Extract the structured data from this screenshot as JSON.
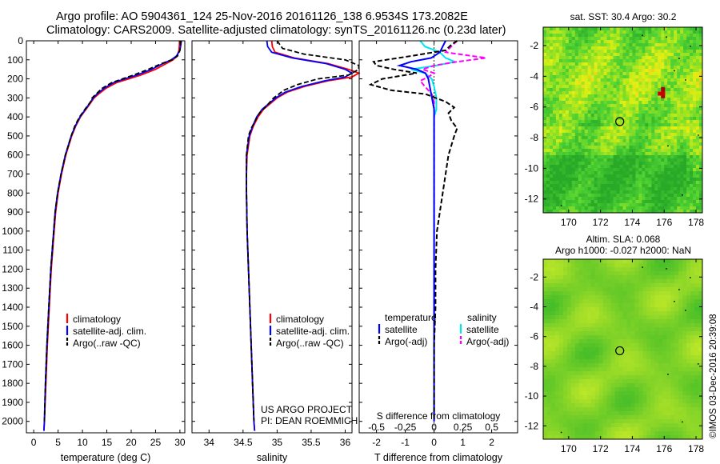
{
  "header": {
    "line1": "Argo profile: AO 5904361_124 25-Nov-2016 20161126_138 6.9534S 173.2082E",
    "line2": "Climatology: CARS2009. Satellite-adjusted climatology: synTS_20161126.nc (0.23d later)"
  },
  "colors": {
    "climatology": "#ff0000",
    "satellite": "#0000ff",
    "argo": "#000000",
    "sal_satellite": "#00e5ee",
    "sal_argo": "#ff00ff"
  },
  "depth_axis": {
    "ticks": [
      0,
      100,
      200,
      300,
      400,
      500,
      600,
      700,
      800,
      900,
      1000,
      1100,
      1200,
      1300,
      1400,
      1500,
      1600,
      1700,
      1800,
      1900,
      2000
    ],
    "ylim": [
      0,
      2060
    ]
  },
  "chart_data": [
    {
      "id": "temperature",
      "type": "line",
      "xlabel": "temperature (deg C)",
      "xlim": [
        -1.5,
        31
      ],
      "xticks": [
        0,
        5,
        10,
        15,
        20,
        25,
        30
      ],
      "legend": [
        "climatology",
        "satellite-adj. clim.",
        "Argo(..raw -QC)"
      ],
      "series": [
        {
          "name": "climatology",
          "depth": [
            0,
            20,
            50,
            80,
            100,
            120,
            150,
            180,
            200,
            220,
            250,
            280,
            300,
            350,
            400,
            450,
            500,
            600,
            700,
            800,
            900,
            1000,
            1200,
            1400,
            1600,
            1800,
            2000,
            2050
          ],
          "values": [
            29.9,
            29.9,
            29.8,
            29.4,
            28.6,
            27.2,
            25.0,
            22.0,
            19.5,
            17.0,
            14.8,
            13.3,
            12.4,
            11.0,
            9.6,
            8.6,
            7.8,
            6.6,
            5.7,
            5.0,
            4.5,
            4.2,
            3.6,
            3.2,
            2.8,
            2.5,
            2.2,
            2.1
          ]
        },
        {
          "name": "satellite-adj. clim.",
          "depth": [
            0,
            20,
            50,
            80,
            100,
            120,
            150,
            180,
            200,
            220,
            250,
            280,
            300,
            350,
            400,
            450,
            500,
            600,
            700,
            800,
            900,
            1000,
            1200,
            1400,
            1600,
            1800,
            2000,
            2050
          ],
          "values": [
            30.3,
            30.2,
            30.0,
            29.3,
            28.2,
            26.5,
            24.2,
            21.2,
            18.6,
            16.4,
            14.4,
            13.0,
            12.2,
            10.9,
            9.5,
            8.5,
            7.7,
            6.5,
            5.6,
            4.9,
            4.4,
            4.1,
            3.5,
            3.1,
            2.7,
            2.4,
            2.2,
            2.1
          ]
        },
        {
          "name": "Argo(..raw -QC)",
          "depth": [
            0,
            20,
            50,
            80,
            100,
            120,
            150,
            180,
            200,
            220,
            250,
            280,
            300,
            320,
            350,
            400,
            450,
            500,
            600,
            700,
            800,
            900,
            1000,
            1200,
            1400,
            1600,
            1800,
            2000
          ],
          "values": [
            30.2,
            30.1,
            30.0,
            29.5,
            28.4,
            26.2,
            23.5,
            20.5,
            18.2,
            16.0,
            14.0,
            12.8,
            12.0,
            11.7,
            10.8,
            9.4,
            8.4,
            7.7,
            6.5,
            5.6,
            4.9,
            4.4,
            4.1,
            3.5,
            3.1,
            2.7,
            2.4,
            2.2
          ]
        }
      ]
    },
    {
      "id": "salinity",
      "type": "line",
      "xlabel": "salinity",
      "xlim": [
        33.75,
        36.1
      ],
      "xticks": [
        34,
        34.5,
        35,
        35.5,
        36
      ],
      "tick_labels": [
        "34",
        "34.5",
        "35",
        "35.5",
        "36"
      ],
      "legend": [
        "climatology",
        "satellite-adj. clim.",
        "Argo(..raw -QC)"
      ],
      "annotation": [
        "US ARGO PROJECT",
        "PI: DEAN ROEMMICH"
      ],
      "series": [
        {
          "name": "climatology",
          "depth": [
            0,
            30,
            60,
            90,
            120,
            150,
            170,
            190,
            210,
            240,
            270,
            300,
            330,
            360,
            400,
            450,
            500,
            600,
            700,
            800,
            1000,
            1200,
            1400,
            1600,
            1800,
            2000,
            2050
          ],
          "values": [
            34.92,
            34.93,
            34.97,
            35.25,
            35.75,
            36.05,
            36.2,
            36.1,
            35.75,
            35.4,
            35.15,
            35.0,
            34.9,
            34.8,
            34.72,
            34.65,
            34.6,
            34.56,
            34.55,
            34.55,
            34.56,
            34.58,
            34.6,
            34.62,
            34.64,
            34.66,
            34.67
          ]
        },
        {
          "name": "satellite-adj. clim.",
          "depth": [
            0,
            30,
            60,
            90,
            120,
            150,
            170,
            190,
            210,
            240,
            270,
            300,
            330,
            360,
            400,
            450,
            500,
            600,
            700,
            800,
            1000,
            1200,
            1400,
            1600,
            1800,
            2000,
            2050
          ],
          "values": [
            34.85,
            34.86,
            34.92,
            35.22,
            35.72,
            36.0,
            36.1,
            36.0,
            35.7,
            35.36,
            35.12,
            34.98,
            34.88,
            34.78,
            34.7,
            34.64,
            34.59,
            34.55,
            34.55,
            34.55,
            34.56,
            34.58,
            34.6,
            34.62,
            34.64,
            34.66,
            34.67
          ]
        },
        {
          "name": "Argo(..raw -QC)",
          "depth": [
            0,
            40,
            70,
            100,
            130,
            150,
            180,
            200,
            230,
            260,
            300,
            340,
            380,
            420,
            460,
            500,
            600,
            700,
            800,
            1000,
            1200,
            1400,
            1600,
            1800,
            2000
          ],
          "values": [
            35.0,
            35.08,
            35.4,
            36.0,
            36.2,
            36.2,
            36.05,
            35.6,
            35.3,
            35.1,
            34.95,
            34.85,
            34.74,
            34.68,
            34.62,
            34.58,
            34.55,
            34.55,
            34.55,
            34.56,
            34.58,
            34.6,
            34.62,
            34.64,
            34.66
          ]
        }
      ]
    },
    {
      "id": "differences",
      "type": "line",
      "xlabel": "T difference from climatology",
      "xlabel_top": "S difference from climatology",
      "xlim": [
        -2.6,
        2.9
      ],
      "xticks_T": [
        -2,
        -1,
        0,
        1,
        2
      ],
      "xticks_S": [
        -0.5,
        -0.25,
        0,
        0.25,
        0.5
      ],
      "tick_labels_S": [
        "-0.5",
        "-0.25",
        "0",
        "0.25",
        "0.5"
      ],
      "legend_titles": [
        "temperature",
        "salinity"
      ],
      "legend": [
        "satellite",
        "Argo(-adj)",
        "satellite",
        "Argo(-adj)"
      ],
      "series": [
        {
          "name": "temperature satellite",
          "depth": [
            0,
            30,
            60,
            90,
            110,
            130,
            150,
            170,
            200,
            240,
            280,
            320,
            360,
            400,
            500,
            700,
            1000,
            1500,
            2000
          ],
          "values": [
            0.4,
            0.3,
            0.2,
            -0.1,
            -0.8,
            -1.2,
            -0.6,
            -0.3,
            -0.2,
            -0.15,
            -0.1,
            -0.05,
            0.0,
            0.0,
            0.0,
            0.0,
            0.0,
            0.0,
            0.0
          ]
        },
        {
          "name": "temperature Argo(-adj)",
          "depth": [
            0,
            20,
            50,
            80,
            110,
            130,
            150,
            170,
            200,
            230,
            260,
            280,
            320,
            350,
            380,
            420,
            460,
            500,
            550,
            600,
            700,
            800,
            900,
            1000,
            1200,
            1400,
            1600,
            1800,
            2000
          ],
          "values": [
            0.8,
            0.6,
            0.4,
            -0.8,
            -2.1,
            -2.0,
            -1.4,
            -0.6,
            -1.8,
            -2.2,
            -1.5,
            -0.3,
            0.4,
            0.7,
            0.5,
            0.6,
            0.8,
            0.7,
            0.6,
            0.5,
            0.4,
            0.3,
            0.2,
            0.1,
            0.05,
            0.05,
            0.0,
            0.0,
            0.0
          ]
        },
        {
          "name": "salinity satellite",
          "depth": [
            0,
            30,
            60,
            90,
            110,
            130,
            150,
            170,
            200,
            240,
            300,
            360,
            400,
            500,
            700,
            1000,
            1500,
            2000
          ],
          "values": [
            -0.12,
            -0.08,
            0.05,
            0.1,
            0.18,
            0.02,
            -0.2,
            -0.08,
            -0.02,
            0.0,
            0.02,
            0.02,
            0.0,
            0.0,
            0.0,
            0.0,
            0.0,
            0.0
          ]
        },
        {
          "name": "salinity Argo(-adj)",
          "depth": [
            0,
            30,
            60,
            90,
            110,
            130,
            150,
            170,
            190,
            210,
            240,
            280,
            320,
            360,
            400,
            500,
            700,
            1000,
            1500,
            2000
          ],
          "values": [
            0.2,
            0.15,
            0.1,
            0.45,
            0.2,
            0.0,
            -0.1,
            0.0,
            -0.05,
            -0.12,
            -0.08,
            -0.02,
            0.0,
            0.0,
            0.0,
            0.0,
            0.0,
            0.0,
            0.0,
            0.0
          ]
        }
      ]
    },
    {
      "id": "sst-map",
      "type": "heatmap",
      "title": "sat. SST: 30.4  Argo: 30.2",
      "xlim": [
        168.4,
        178.4
      ],
      "ylim": [
        -12.9,
        -0.8
      ],
      "xticks": [
        170,
        172,
        174,
        176,
        178
      ],
      "yticks": [
        -2,
        -4,
        -6,
        -8,
        -10,
        -12
      ],
      "marker": {
        "lon": 173.2082,
        "lat": -6.9534
      }
    },
    {
      "id": "sla-map",
      "type": "heatmap",
      "title_line1": "Altim. SLA: 0.068",
      "title_line2": "Argo h1000: -0.027 h2000: NaN",
      "xlim": [
        168.4,
        178.4
      ],
      "ylim": [
        -12.9,
        -0.8
      ],
      "xticks": [
        170,
        172,
        174,
        176,
        178
      ],
      "yticks": [
        -2,
        -4,
        -6,
        -8,
        -10,
        -12
      ],
      "marker": {
        "lon": 173.2082,
        "lat": -6.9534
      }
    }
  ],
  "credit": "©IMOS 03-Dec-2016 20:39:08"
}
